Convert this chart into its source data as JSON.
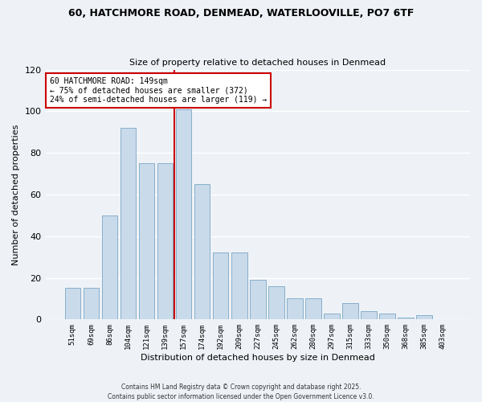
{
  "title": "60, HATCHMORE ROAD, DENMEAD, WATERLOOVILLE, PO7 6TF",
  "subtitle": "Size of property relative to detached houses in Denmead",
  "xlabel": "Distribution of detached houses by size in Denmead",
  "ylabel": "Number of detached properties",
  "bar_color": "#c9daea",
  "bar_edge_color": "#6699bb",
  "categories": [
    "51sqm",
    "69sqm",
    "86sqm",
    "104sqm",
    "121sqm",
    "139sqm",
    "157sqm",
    "174sqm",
    "192sqm",
    "209sqm",
    "227sqm",
    "245sqm",
    "262sqm",
    "280sqm",
    "297sqm",
    "315sqm",
    "333sqm",
    "350sqm",
    "368sqm",
    "385sqm",
    "403sqm"
  ],
  "bar_values": [
    15,
    15,
    50,
    92,
    75,
    75,
    101,
    65,
    32,
    32,
    19,
    16,
    10,
    10,
    3,
    8,
    4,
    3,
    1,
    2,
    0
  ],
  "ylim": [
    0,
    120
  ],
  "yticks": [
    0,
    20,
    40,
    60,
    80,
    100,
    120
  ],
  "red_line_index": 6,
  "annotation_title": "60 HATCHMORE ROAD: 149sqm",
  "annotation_line1": "← 75% of detached houses are smaller (372)",
  "annotation_line2": "24% of semi-detached houses are larger (119) →",
  "footer": "Contains HM Land Registry data © Crown copyright and database right 2025.\nContains public sector information licensed under the Open Government Licence v3.0.",
  "background_color": "#eef2f7",
  "plot_bg_color": "#eef2f7",
  "grid_color": "#ffffff",
  "red_line_color": "#cc0000",
  "box_edge_color": "#cc0000",
  "title_fontsize": 9,
  "subtitle_fontsize": 8
}
